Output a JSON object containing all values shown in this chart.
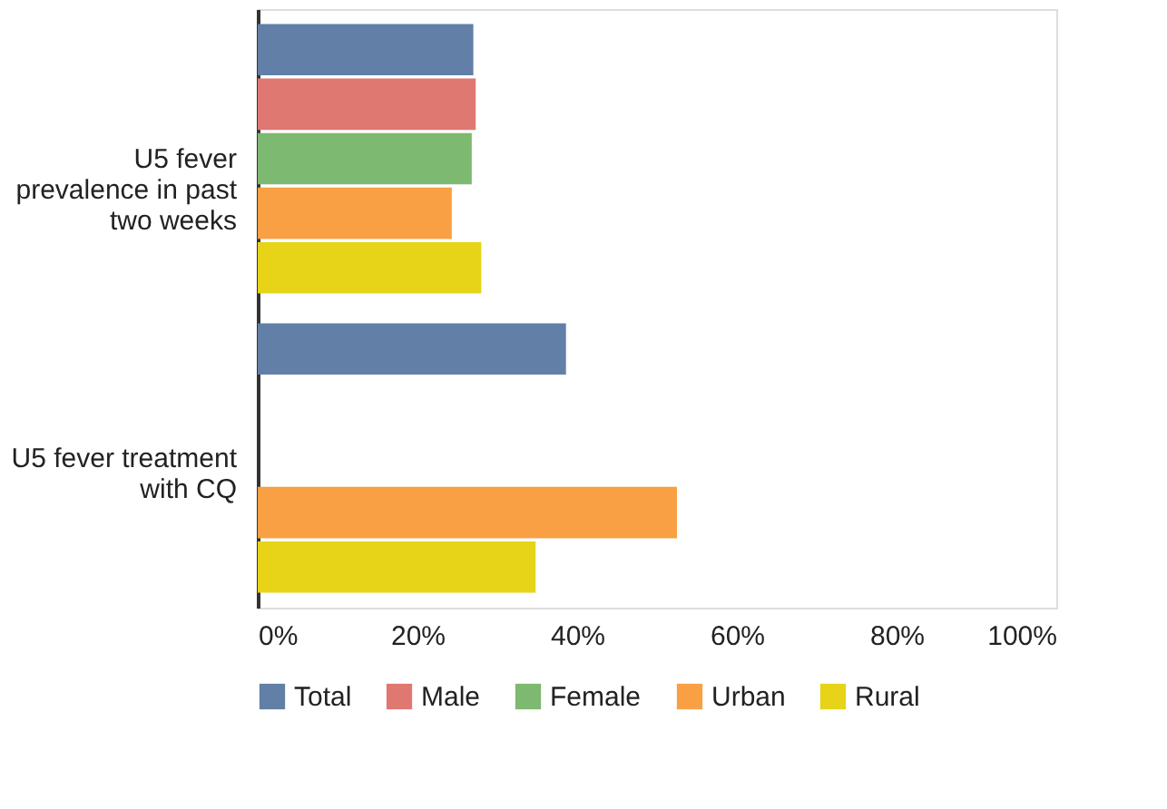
{
  "chart_data": {
    "type": "bar",
    "orientation": "horizontal",
    "categories": [
      "U5 fever prevalence in past two weeks",
      "U5 fever treatment with CQ"
    ],
    "series": [
      {
        "name": "Total",
        "color": "#617fa7",
        "values": [
          27.0,
          38.6
        ]
      },
      {
        "name": "Male",
        "color": "#df7870",
        "values": [
          27.3,
          null
        ]
      },
      {
        "name": "Female",
        "color": "#7db970",
        "values": [
          26.8,
          null
        ]
      },
      {
        "name": "Urban",
        "color": "#f8a043",
        "values": [
          24.3,
          52.5
        ]
      },
      {
        "name": "Rural",
        "color": "#e7d318",
        "values": [
          28.0,
          34.8
        ]
      }
    ],
    "xlim": [
      0,
      100
    ],
    "xticks": [
      {
        "value": 0,
        "label": "0%"
      },
      {
        "value": 20,
        "label": "20%"
      },
      {
        "value": 40,
        "label": "40%"
      },
      {
        "value": 60,
        "label": "60%"
      },
      {
        "value": 80,
        "label": "80%"
      },
      {
        "value": 100,
        "label": "100%"
      }
    ],
    "grid": false,
    "legend": "bottom"
  }
}
